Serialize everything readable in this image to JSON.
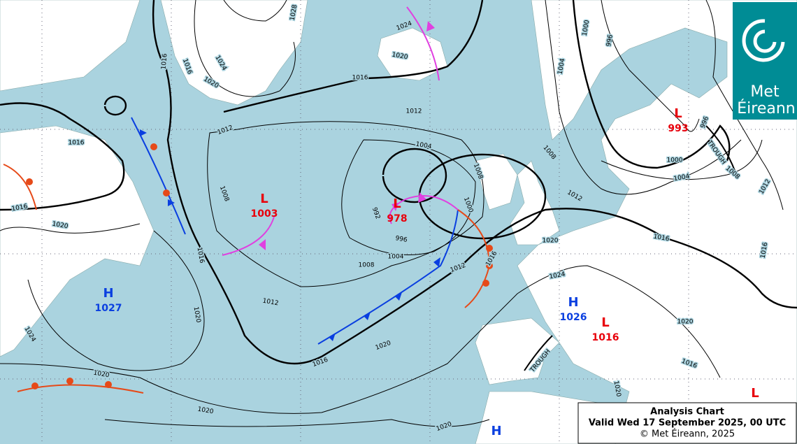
{
  "logo": {
    "line1": "Met",
    "line2": "Éireann"
  },
  "caption": {
    "title": "Analysis Chart",
    "valid": "Valid Wed 17 September 2025, 00 UTC",
    "credit": "© Met Éireann, 2025"
  },
  "pressure_centres": [
    {
      "type": "L",
      "value": "1003",
      "color": "#e8000b"
    },
    {
      "type": "L",
      "value": "978",
      "color": "#e8000b"
    },
    {
      "type": "H",
      "value": "1027",
      "color": "#0a3fe0"
    },
    {
      "type": "H",
      "value": "1026",
      "color": "#0a3fe0"
    },
    {
      "type": "L",
      "value": "1016",
      "color": "#e8000b"
    },
    {
      "type": "L",
      "value": "993",
      "color": "#e8000b"
    },
    {
      "type": "L",
      "color": "#e8000b"
    },
    {
      "type": "H",
      "color": "#0a3fe0"
    }
  ],
  "isobar_labels": [
    "1028",
    "1024",
    "1020",
    "1016",
    "1016",
    "1016",
    "1012",
    "1012",
    "1016",
    "1016",
    "1020",
    "1008",
    "1004",
    "1008",
    "1000",
    "992",
    "996",
    "1004",
    "1008",
    "1012",
    "1012",
    "1016",
    "1020",
    "1024",
    "1020",
    "1016",
    "1020",
    "1020",
    "1020",
    "1016",
    "1020",
    "1024",
    "1016",
    "1020",
    "1016",
    "1020",
    "1008",
    "1012",
    "1004",
    "1000",
    "1004",
    "1000",
    "996",
    "996",
    "1008",
    "1012",
    "1016",
    "1024",
    "1020"
  ],
  "trough_labels": [
    "TROUGH",
    "TROUGH"
  ]
}
